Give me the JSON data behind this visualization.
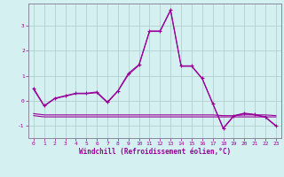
{
  "xlabel": "Windchill (Refroidissement éolien,°C)",
  "ylabel": "",
  "background_color": "#d4f0f0",
  "line_color": "#990099",
  "grid_color": "#aacccc",
  "xlim": [
    -0.5,
    23.5
  ],
  "ylim": [
    -1.5,
    3.9
  ],
  "yticks": [
    -1,
    0,
    1,
    2,
    3
  ],
  "xticks": [
    0,
    1,
    2,
    3,
    4,
    5,
    6,
    7,
    8,
    9,
    10,
    11,
    12,
    13,
    14,
    15,
    16,
    17,
    18,
    19,
    20,
    21,
    22,
    23
  ],
  "series": [
    {
      "x": [
        0,
        1,
        2,
        3,
        4,
        5,
        6,
        7,
        8,
        9,
        10,
        11,
        12,
        13,
        14,
        15,
        16,
        17,
        18,
        19,
        20,
        21,
        22,
        23
      ],
      "y": [
        0.5,
        -0.2,
        0.1,
        0.2,
        0.3,
        0.3,
        0.35,
        -0.05,
        0.4,
        1.1,
        1.45,
        2.8,
        2.8,
        3.65,
        1.4,
        1.4,
        0.9,
        -0.1,
        -1.1,
        -0.6,
        -0.5,
        -0.55,
        -0.65,
        -1.0
      ],
      "marker": "+"
    },
    {
      "x": [
        0,
        1,
        2,
        3,
        4,
        5,
        6,
        7,
        8,
        9,
        10,
        11,
        12,
        13,
        14,
        15,
        16,
        17,
        18,
        19,
        20,
        21,
        22,
        23
      ],
      "y": [
        0.45,
        -0.22,
        0.08,
        0.18,
        0.28,
        0.28,
        0.32,
        -0.08,
        0.38,
        1.05,
        1.42,
        2.78,
        2.78,
        3.62,
        1.38,
        1.38,
        0.88,
        -0.12,
        -1.12,
        -0.62,
        -0.52,
        -0.57,
        -0.67,
        -1.02
      ],
      "marker": null
    },
    {
      "x": [
        0,
        1,
        2,
        3,
        4,
        5,
        6,
        7,
        8,
        9,
        10,
        11,
        12,
        13,
        14,
        15,
        16,
        17,
        18,
        19,
        20,
        21,
        22,
        23
      ],
      "y": [
        -0.6,
        -0.65,
        -0.65,
        -0.65,
        -0.65,
        -0.65,
        -0.65,
        -0.65,
        -0.65,
        -0.65,
        -0.65,
        -0.65,
        -0.65,
        -0.65,
        -0.65,
        -0.65,
        -0.65,
        -0.65,
        -0.65,
        -0.65,
        -0.65,
        -0.65,
        -0.65,
        -0.65
      ],
      "marker": null
    },
    {
      "x": [
        0,
        1,
        2,
        3,
        4,
        5,
        6,
        7,
        8,
        9,
        10,
        11,
        12,
        13,
        14,
        15,
        16,
        17,
        18,
        19,
        20,
        21,
        22,
        23
      ],
      "y": [
        -0.52,
        -0.57,
        -0.57,
        -0.57,
        -0.57,
        -0.57,
        -0.57,
        -0.57,
        -0.57,
        -0.57,
        -0.57,
        -0.57,
        -0.57,
        -0.57,
        -0.57,
        -0.57,
        -0.57,
        -0.57,
        -0.6,
        -0.6,
        -0.57,
        -0.57,
        -0.57,
        -0.6
      ],
      "marker": null
    }
  ]
}
